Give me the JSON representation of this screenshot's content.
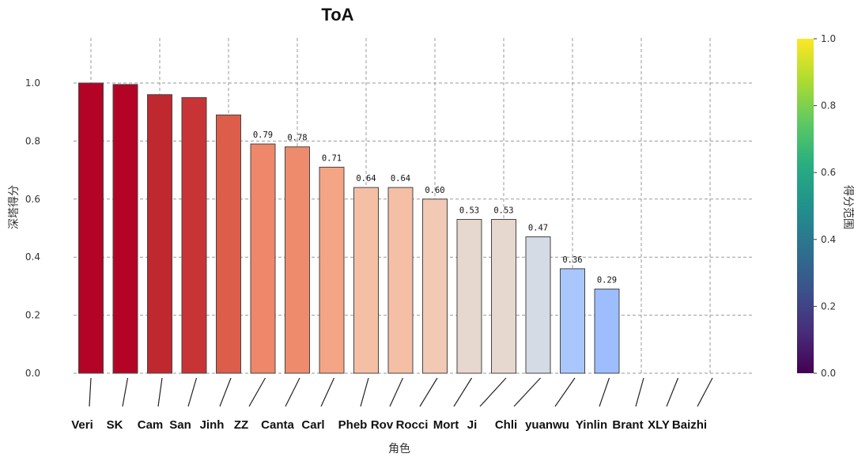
{
  "chart_data": {
    "type": "bar",
    "title": "ToA",
    "xlabel": "角色",
    "ylabel": "深塔得分",
    "ylim": [
      0,
      1.15
    ],
    "yticks": [
      "0.0",
      "0.2",
      "0.4",
      "0.6",
      "0.8",
      "1.0"
    ],
    "grid": true,
    "categories": [
      "Veri",
      "SK",
      "Cam",
      "San",
      "Jinh",
      "ZZ",
      "Canta",
      "Carl",
      "Pheb",
      "Rov",
      "Rocci",
      "Mort",
      "Ji",
      "Chli",
      "yuanwu",
      "Yinlin",
      "Brant",
      "XLY",
      "Baizhi"
    ],
    "values": [
      1.0,
      0.995,
      0.96,
      0.95,
      0.89,
      0.79,
      0.78,
      0.71,
      0.64,
      0.64,
      0.6,
      0.53,
      0.53,
      0.47,
      0.36,
      0.29,
      0,
      0,
      0
    ],
    "data_labels": [
      "",
      "",
      "",
      "",
      "",
      "0.79",
      "0.78",
      "0.71",
      "0.64",
      "0.64",
      "0.60",
      "0.53",
      "0.53",
      "0.47",
      "0.36",
      "0.29",
      "",
      "",
      ""
    ],
    "bar_colors": [
      "#b40426",
      "#b40426",
      "#c0282f",
      "#c83336",
      "#dc5d4a",
      "#ef886b",
      "#ef8b6d",
      "#f4a585",
      "#f5bfa6",
      "#f5bfa6",
      "#f2c9b4",
      "#e6d7cf",
      "#e6d7cf",
      "#d5dbe5",
      "#aac7fd",
      "#9dbdff",
      "",
      "",
      ""
    ],
    "colorbar": {
      "label": "得分范围",
      "colormap": "viridis",
      "range": [
        0.0,
        1.0
      ],
      "ticks": [
        "0.0",
        "0.2",
        "0.4",
        "0.6",
        "0.8",
        "1.0"
      ]
    }
  }
}
